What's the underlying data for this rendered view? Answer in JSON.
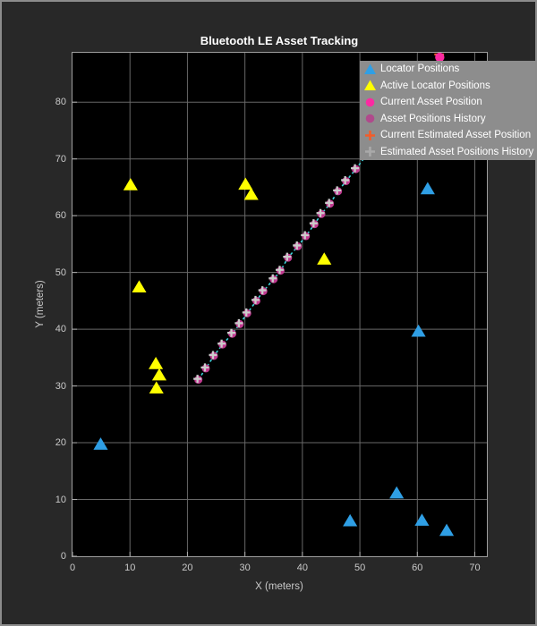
{
  "figure": {
    "background": "#282828",
    "border_color": "#8c8c8c"
  },
  "chart_data": {
    "type": "scatter",
    "title": "Bluetooth LE Asset Tracking",
    "xlabel": "X (meters)",
    "ylabel": "Y (meters)",
    "xlim": [
      0,
      72.1
    ],
    "ylim": [
      0,
      88.7
    ],
    "xticks": [
      0,
      10,
      20,
      30,
      40,
      50,
      60,
      70
    ],
    "yticks": [
      0,
      10,
      20,
      30,
      40,
      50,
      60,
      70,
      80
    ],
    "grid": true,
    "legend_position": "top-right",
    "plot_background": "#000000",
    "grid_color": "#686868",
    "axis_color": "#9e9e9e",
    "tick_color": "#b0b0b0",
    "tick_label_color": "#c9c9c9",
    "series": [
      {
        "name": "Locator Positions",
        "marker": "triangle",
        "color": "#2f9fe5",
        "points": [
          [
            4.9,
            19.8
          ],
          [
            48.3,
            6.3
          ],
          [
            56.4,
            11.2
          ],
          [
            60.8,
            6.4
          ],
          [
            65.1,
            4.6
          ],
          [
            60.2,
            39.7
          ],
          [
            61.8,
            64.8
          ]
        ]
      },
      {
        "name": "Active Locator Positions",
        "marker": "triangle",
        "color": "#ffff00",
        "points": [
          [
            10.1,
            65.5
          ],
          [
            30.1,
            65.6
          ],
          [
            31.1,
            63.8
          ],
          [
            11.6,
            47.5
          ],
          [
            43.8,
            52.4
          ],
          [
            14.5,
            34.0
          ],
          [
            15.1,
            32.0
          ],
          [
            14.6,
            29.7
          ]
        ]
      },
      {
        "name": "Asset Positions History",
        "marker": "circle",
        "color": "#c13a90",
        "line_color": "#3ed2da",
        "line_style": "dashed",
        "points": [
          [
            21.9,
            31.1
          ],
          [
            23.2,
            33.1
          ],
          [
            24.6,
            35.3
          ],
          [
            26.1,
            37.3
          ],
          [
            27.8,
            39.2
          ],
          [
            29.1,
            40.9
          ],
          [
            30.4,
            42.8
          ],
          [
            32.0,
            45.0
          ],
          [
            33.2,
            46.7
          ],
          [
            35.0,
            48.8
          ],
          [
            36.2,
            50.3
          ],
          [
            37.5,
            52.6
          ],
          [
            39.2,
            54.6
          ],
          [
            40.6,
            56.4
          ],
          [
            42.1,
            58.5
          ],
          [
            43.3,
            60.3
          ],
          [
            44.8,
            62.1
          ],
          [
            46.2,
            64.3
          ],
          [
            47.6,
            66.1
          ],
          [
            49.3,
            68.2
          ]
        ]
      },
      {
        "name": "Estimated Asset Positions History",
        "marker": "plus",
        "color": "#cccccc",
        "points": [
          [
            21.9,
            31.1
          ],
          [
            23.2,
            33.1
          ],
          [
            24.6,
            35.3
          ],
          [
            26.1,
            37.3
          ],
          [
            27.8,
            39.2
          ],
          [
            29.1,
            40.9
          ],
          [
            30.4,
            42.8
          ],
          [
            32.0,
            45.0
          ],
          [
            33.2,
            46.7
          ],
          [
            35.0,
            48.8
          ],
          [
            36.2,
            50.3
          ],
          [
            37.5,
            52.6
          ],
          [
            39.2,
            54.6
          ],
          [
            40.6,
            56.4
          ],
          [
            42.1,
            58.5
          ],
          [
            43.3,
            60.3
          ],
          [
            44.8,
            62.1
          ],
          [
            46.2,
            64.3
          ],
          [
            47.6,
            66.1
          ],
          [
            49.3,
            68.2
          ]
        ]
      },
      {
        "name": "Current Estimated Asset Position",
        "marker": "plus",
        "color": "#f25c2a",
        "points": [
          [
            63.8,
            88.4
          ]
        ]
      },
      {
        "name": "Current Asset Position",
        "marker": "circle",
        "color": "#fb2aa2",
        "points": [
          [
            63.9,
            87.9
          ]
        ]
      }
    ]
  },
  "legend": {
    "background": "#8d8d8d",
    "text_color": "#ffffff",
    "items": [
      {
        "label": "Locator Positions",
        "marker": "triangle",
        "color": "#2f9fe5"
      },
      {
        "label": "Active Locator Positions",
        "marker": "triangle",
        "color": "#ffff00"
      },
      {
        "label": "Current Asset Position",
        "marker": "circle",
        "color": "#fb2aa2"
      },
      {
        "label": "Asset Positions History",
        "marker": "circle",
        "color": "#b04a8c"
      },
      {
        "label": "Current Estimated Asset Position",
        "marker": "plus",
        "color": "#f25c2a"
      },
      {
        "label": "Estimated Asset Positions History",
        "marker": "plus",
        "color": "#a9a9a9"
      }
    ]
  }
}
